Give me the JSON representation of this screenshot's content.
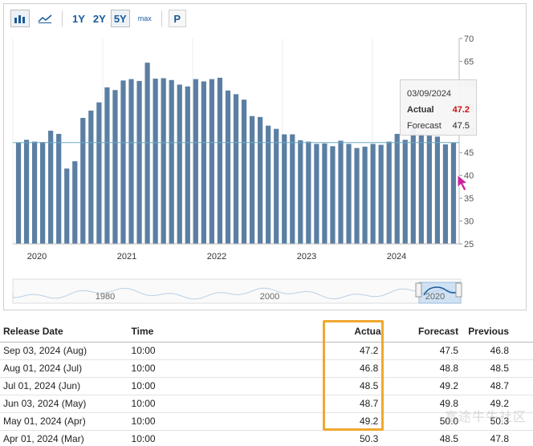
{
  "toolbar": {
    "bar_chart_icon": "bar-chart-icon",
    "line_chart_icon": "line-chart-icon",
    "range_1y": "1Y",
    "range_2y": "2Y",
    "range_5y": "5Y",
    "range_max": "max",
    "p_button": "P",
    "active_range": "5Y"
  },
  "colors": {
    "bar": "#5b7fa3",
    "reference_line": "#6aa9c4",
    "actual_red": "#cc1111",
    "actual_green": "#2a9a2a",
    "highlight_border": "#f0a830",
    "cursor": "#cc2299"
  },
  "chart_data": {
    "type": "bar",
    "y_axis": {
      "ticks": [
        25,
        30,
        35,
        40,
        45,
        50,
        55,
        60,
        65,
        70
      ],
      "ylim": [
        25,
        70
      ],
      "side": "right"
    },
    "x_axis": {
      "tick_labels": [
        "2020",
        "2021",
        "2022",
        "2023",
        "2024"
      ]
    },
    "reference_line_value": 47.2,
    "values": [
      47.2,
      47.8,
      47.4,
      47.3,
      49.8,
      49.1,
      41.5,
      43.1,
      52.6,
      54.2,
      56.0,
      59.3,
      58.7,
      60.8,
      61.1,
      60.7,
      64.7,
      61.2,
      61.3,
      60.9,
      59.9,
      59.5,
      61.1,
      60.6,
      61.1,
      61.4,
      58.6,
      57.8,
      56.6,
      53.0,
      52.8,
      50.9,
      50.2,
      49.0,
      49.0,
      47.7,
      47.4,
      46.9,
      47.0,
      46.4,
      47.6,
      46.9,
      46.0,
      46.3,
      46.9,
      46.7,
      47.4,
      49.1,
      47.8,
      50.3,
      49.2,
      48.7,
      48.5,
      46.8,
      47.2
    ],
    "navigator": {
      "labels": [
        "1980",
        "2000",
        "2020"
      ]
    }
  },
  "tooltip": {
    "date": "03/09/2024",
    "actual_label": "Actual",
    "actual_value": "47.2",
    "forecast_label": "Forecast",
    "forecast_value": "47.5"
  },
  "table": {
    "headers": [
      "Release Date",
      "Time",
      "Actual",
      "Forecast",
      "Previous"
    ],
    "rows": [
      {
        "date": "Sep 03, 2024 (Aug)",
        "time": "10:00",
        "actual": "47.2",
        "actual_color": "red",
        "forecast": "47.5",
        "previous": "46.8"
      },
      {
        "date": "Aug 01, 2024 (Jul)",
        "time": "10:00",
        "actual": "46.8",
        "actual_color": "red",
        "forecast": "48.8",
        "previous": "48.5"
      },
      {
        "date": "Jul 01, 2024 (Jun)",
        "time": "10:00",
        "actual": "48.5",
        "actual_color": "red",
        "forecast": "49.2",
        "previous": "48.7"
      },
      {
        "date": "Jun 03, 2024 (May)",
        "time": "10:00",
        "actual": "48.7",
        "actual_color": "red",
        "forecast": "49.8",
        "previous": "49.2"
      },
      {
        "date": "May 01, 2024 (Apr)",
        "time": "10:00",
        "actual": "49.2",
        "actual_color": "red",
        "forecast": "50.0",
        "previous": "50.3"
      },
      {
        "date": "Apr 01, 2024 (Mar)",
        "time": "10:00",
        "actual": "50.3",
        "actual_color": "green",
        "forecast": "48.5",
        "previous": "47.8"
      }
    ]
  },
  "watermark": "富途牛牛社区"
}
